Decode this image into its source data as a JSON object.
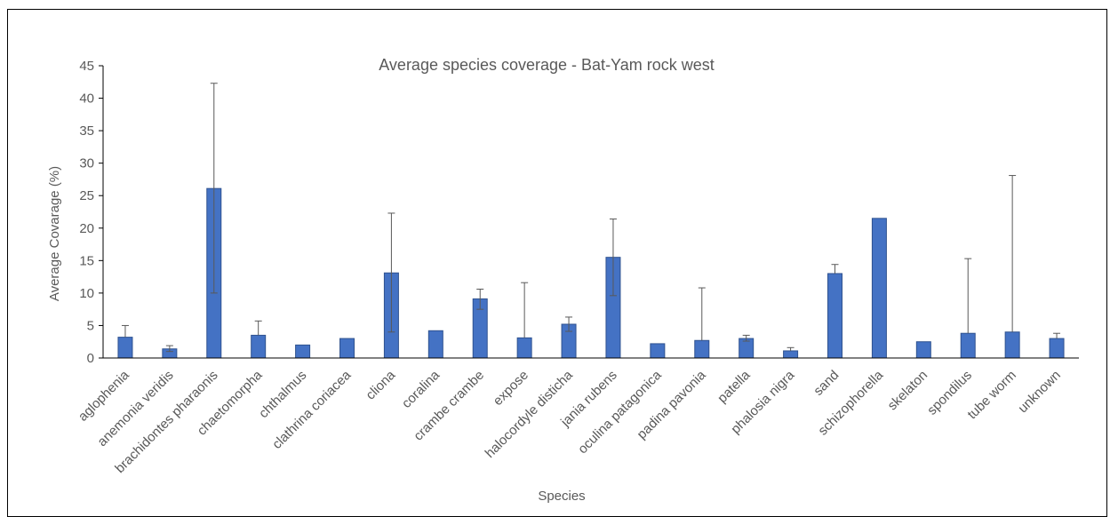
{
  "chart_data": {
    "type": "bar",
    "title": "Average species coverage - Bat-Yam rock west",
    "xlabel": "Species",
    "ylabel": "Average Covarage (%)",
    "ylim": [
      0,
      45
    ],
    "yticks": [
      0,
      5,
      10,
      15,
      20,
      25,
      30,
      35,
      40,
      45
    ],
    "grid": false,
    "bar_color": "#4472C4",
    "bar_edge_color": "#2F528F",
    "categories": [
      "aglophenia",
      "anemonia veridis",
      "brachidontes pharaonis",
      "chaetomorpha",
      "chthalmus",
      "clathrina coriacea",
      "cliona",
      "coralina",
      "crambe crambe",
      "expose",
      "halocordyle disticha",
      "jania rubens",
      "oculina patagonica",
      "padina pavonia",
      "patella",
      "phalosia nigra",
      "sand",
      "schizophorella",
      "skelaton",
      "spondilus",
      "tube worm",
      "unknown"
    ],
    "values": [
      3.2,
      1.4,
      26.1,
      3.5,
      2.0,
      3.0,
      13.1,
      4.2,
      9.1,
      3.1,
      5.2,
      15.5,
      2.2,
      2.7,
      3.0,
      1.1,
      13.0,
      21.5,
      2.5,
      3.8,
      4.0,
      3.0
    ],
    "error_upper": [
      5.0,
      1.9,
      42.3,
      5.7,
      null,
      null,
      22.3,
      null,
      10.6,
      11.6,
      6.3,
      21.4,
      null,
      10.8,
      3.5,
      1.6,
      14.4,
      null,
      null,
      15.3,
      28.1,
      3.8
    ],
    "error_lower": [
      null,
      1.0,
      10.0,
      null,
      null,
      null,
      4.0,
      null,
      7.5,
      null,
      4.1,
      9.6,
      null,
      null,
      2.6,
      null,
      null,
      null,
      null,
      null,
      null,
      null
    ]
  }
}
